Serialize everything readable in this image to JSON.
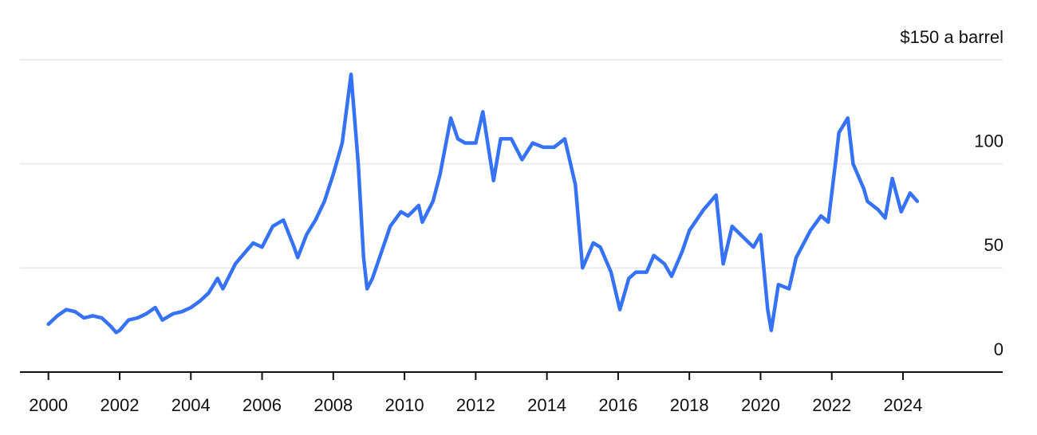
{
  "chart_data": {
    "type": "line",
    "color": "#3672f5",
    "grid": true,
    "xlim": [
      1999.2,
      2026.8
    ],
    "xticks": [
      2000,
      2002,
      2004,
      2006,
      2008,
      2010,
      2012,
      2014,
      2016,
      2018,
      2020,
      2022,
      2024
    ],
    "ylim": [
      0,
      150
    ],
    "yticks": [
      0,
      50,
      100,
      {
        "value": 150,
        "label": "$150 a barrel"
      }
    ],
    "x": [
      2000.0,
      2000.25,
      2000.5,
      2000.75,
      2001.0,
      2001.25,
      2001.5,
      2001.75,
      2001.9,
      2002.0,
      2002.25,
      2002.5,
      2002.75,
      2003.0,
      2003.2,
      2003.5,
      2003.75,
      2004.0,
      2004.25,
      2004.5,
      2004.75,
      2004.9,
      2005.25,
      2005.5,
      2005.75,
      2006.0,
      2006.3,
      2006.6,
      2006.9,
      2007.0,
      2007.25,
      2007.5,
      2007.75,
      2008.0,
      2008.25,
      2008.5,
      2008.7,
      2008.85,
      2008.95,
      2009.1,
      2009.4,
      2009.6,
      2009.9,
      2010.1,
      2010.4,
      2010.5,
      2010.8,
      2011.0,
      2011.3,
      2011.5,
      2011.7,
      2012.0,
      2012.2,
      2012.5,
      2012.7,
      2013.0,
      2013.3,
      2013.6,
      2013.9,
      2014.2,
      2014.5,
      2014.8,
      2015.0,
      2015.3,
      2015.5,
      2015.8,
      2016.05,
      2016.3,
      2016.5,
      2016.8,
      2017.0,
      2017.3,
      2017.5,
      2017.8,
      2018.0,
      2018.4,
      2018.75,
      2018.95,
      2019.2,
      2019.5,
      2019.8,
      2020.0,
      2020.2,
      2020.3,
      2020.5,
      2020.8,
      2021.0,
      2021.4,
      2021.7,
      2021.9,
      2022.1,
      2022.2,
      2022.45,
      2022.6,
      2022.9,
      2023.0,
      2023.3,
      2023.5,
      2023.7,
      2023.95,
      2024.2,
      2024.4
    ],
    "values": [
      23,
      27,
      30,
      29,
      26,
      27,
      26,
      22,
      19,
      20,
      25,
      26,
      28,
      31,
      25,
      28,
      29,
      31,
      34,
      38,
      45,
      40,
      52,
      57,
      62,
      60,
      70,
      73,
      60,
      55,
      66,
      73,
      82,
      95,
      110,
      143,
      100,
      55,
      40,
      45,
      60,
      70,
      77,
      75,
      80,
      72,
      82,
      95,
      122,
      112,
      110,
      110,
      125,
      92,
      112,
      112,
      102,
      110,
      108,
      108,
      112,
      90,
      50,
      62,
      60,
      48,
      30,
      45,
      48,
      48,
      56,
      52,
      46,
      58,
      68,
      78,
      85,
      52,
      70,
      65,
      60,
      66,
      30,
      20,
      42,
      40,
      55,
      68,
      75,
      72,
      100,
      115,
      122,
      100,
      88,
      82,
      78,
      74,
      93,
      77,
      86,
      82
    ]
  }
}
